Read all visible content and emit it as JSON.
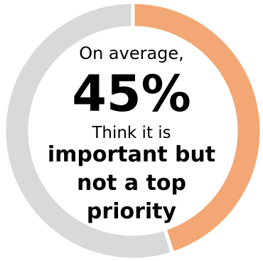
{
  "chart_data": {
    "type": "pie",
    "variant": "donut",
    "slices": [
      {
        "label": "",
        "value": 45,
        "color": "#F2A774"
      },
      {
        "label": "",
        "value": 55,
        "color": "#D9D9D9"
      }
    ]
  },
  "center": {
    "intro": "On average,",
    "value": "45%",
    "desc": "Think it is",
    "emphasis": "important but not a top priority"
  }
}
